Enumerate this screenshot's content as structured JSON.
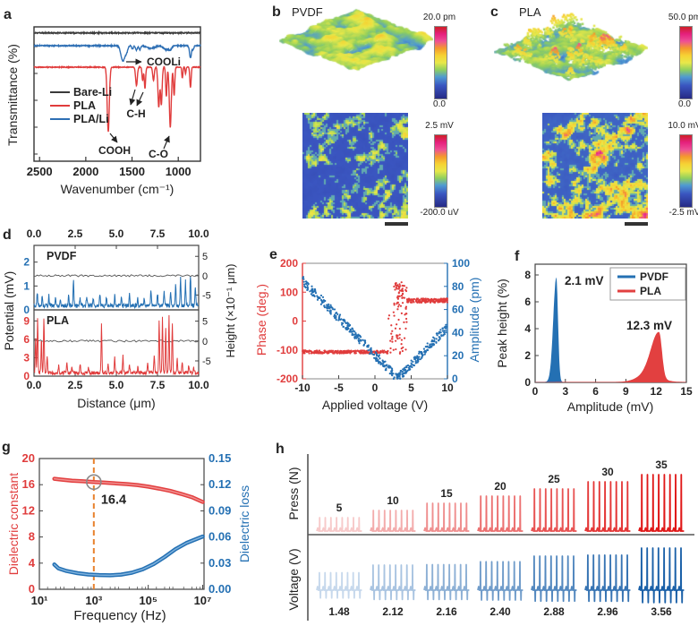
{
  "colors": {
    "red": "#e03c3c",
    "blue": "#2470b3",
    "black": "#3a3a3a",
    "orange_dash": "#e8822e",
    "circle_gray": "#8a8a8a",
    "red_light": "#f09090",
    "blue_light": "#7fb2dd"
  },
  "colormap_stops": [
    [
      0,
      "#262a85"
    ],
    [
      0.18,
      "#3a55c0"
    ],
    [
      0.3,
      "#4f9ad2"
    ],
    [
      0.4,
      "#8fcf5e"
    ],
    [
      0.5,
      "#e8e84a"
    ],
    [
      0.6,
      "#f6d234"
    ],
    [
      0.7,
      "#f49a2c"
    ],
    [
      0.8,
      "#ee4f96"
    ],
    [
      0.9,
      "#e5207e"
    ],
    [
      1,
      "#cf2027"
    ]
  ],
  "panels": {
    "a": {
      "letter": "a",
      "xlabel": "Wavenumber (cm⁻¹)",
      "ylabel": "Transmittance (%)",
      "legend": [
        {
          "label": "Bare-Li",
          "color": "#3a3a3a"
        },
        {
          "label": "PLA",
          "color": "#e03c3c"
        },
        {
          "label": "PLA/Li",
          "color": "#2e6fb4"
        }
      ],
      "annotations": {
        "cooli": "COOLi",
        "ch": "C-H",
        "cooh": "COOH",
        "co": "C-O"
      }
    },
    "b": {
      "letter": "b",
      "title": "PVDF",
      "cb_top_max": "20.0 pm",
      "cb_top_min": "0.0",
      "cb_bot_max": "2.5 mV",
      "cb_bot_min": "-200.0 uV"
    },
    "c": {
      "letter": "c",
      "title": "PLA",
      "cb_top_max": "50.0 pm",
      "cb_top_min": "0.0",
      "cb_bot_max": "10.0 mV",
      "cb_bot_min": "-2.5 mV"
    },
    "d": {
      "letter": "d",
      "ylabel": "Potential (mV)",
      "ylabel_right": "Height (×10⁻¹ μm)",
      "xlabel": "Distance (μm)"
    },
    "e": {
      "letter": "e",
      "xlabel": "Applied voltage (V)",
      "ylabel_left": "Phase (deg.)",
      "ylabel_right": "Amplitude (pm)"
    },
    "f": {
      "letter": "f",
      "xlabel": "Amplitude (mV)",
      "ylabel": "Peak height (%)"
    },
    "g": {
      "letter": "g",
      "xlabel": "Frequency (Hz)",
      "ylabel_left": "Dielectric constant",
      "ylabel_right": "Dielectric loss"
    },
    "h": {
      "letter": "h",
      "top_label": "Press (N)",
      "bottom_label": "Voltage (V)"
    }
  },
  "chart_data": [
    {
      "id": "a",
      "type": "line",
      "title": "FTIR spectra of Bare-Li, PLA and PLA/Li",
      "xlabel": "Wavenumber (cm⁻¹)",
      "ylabel": "Transmittance (%)",
      "x_ticks": [
        2500,
        2000,
        1500,
        1000
      ],
      "x_range": [
        2560,
        760
      ],
      "series": [
        {
          "name": "Bare-Li",
          "color": "#3a3a3a",
          "baseline": 0.045,
          "noise": 0.004,
          "peaks": []
        },
        {
          "name": "PLA/Li",
          "color": "#2e6fb4",
          "baseline": 0.14,
          "noise": 0.004,
          "peaks": [
            {
              "c": 1598,
              "w": 30,
              "d": 0.115
            },
            {
              "c": 1558,
              "w": 18,
              "d": 0.04
            },
            {
              "c": 1495,
              "w": 12,
              "d": 0.025
            },
            {
              "c": 1452,
              "w": 14,
              "d": 0.035
            },
            {
              "c": 1415,
              "w": 12,
              "d": 0.03
            },
            {
              "c": 1300,
              "w": 60,
              "d": 0.02
            },
            {
              "c": 1130,
              "w": 40,
              "d": 0.03
            },
            {
              "c": 1085,
              "w": 20,
              "d": 0.025
            },
            {
              "c": 868,
              "w": 14,
              "d": 0.09
            },
            {
              "c": 838,
              "w": 10,
              "d": 0.03
            }
          ]
        },
        {
          "name": "PLA",
          "color": "#e03c3c",
          "baseline": 0.3,
          "noise": 0.003,
          "peaks": [
            {
              "c": 1757,
              "w": 16,
              "d": 0.48
            },
            {
              "c": 1452,
              "w": 13,
              "d": 0.14
            },
            {
              "c": 1385,
              "w": 10,
              "d": 0.1
            },
            {
              "c": 1360,
              "w": 10,
              "d": 0.16
            },
            {
              "c": 1268,
              "w": 12,
              "d": 0.1
            },
            {
              "c": 1211,
              "w": 13,
              "d": 0.3
            },
            {
              "c": 1183,
              "w": 12,
              "d": 0.28
            },
            {
              "c": 1129,
              "w": 10,
              "d": 0.22
            },
            {
              "c": 1086,
              "w": 15,
              "d": 0.45
            },
            {
              "c": 1045,
              "w": 10,
              "d": 0.21
            },
            {
              "c": 956,
              "w": 8,
              "d": 0.08
            },
            {
              "c": 921,
              "w": 7,
              "d": 0.05
            },
            {
              "c": 868,
              "w": 10,
              "d": 0.15
            }
          ]
        }
      ],
      "peak_annotations": [
        "COOLi at ~1600 (PLA/Li)",
        "C-H at 1452/1360 (PLA)",
        "COOH at ~1757 (PLA)",
        "C-O at ~1086 (PLA)"
      ]
    },
    {
      "id": "d",
      "type": "line",
      "xlabel": "Distance (μm)",
      "ylabel": "Potential (mV)",
      "ylabel_right": "Height (×10⁻¹ μm)",
      "x_range": [
        0,
        10
      ],
      "x_tick_labels": [
        "0.0",
        "2.5",
        "5.0",
        "7.5",
        "10.0"
      ],
      "right_ticks": [
        5,
        0,
        -5
      ],
      "subplots": [
        {
          "label": "PVDF",
          "color": "#2470b3",
          "y_ticks": [
            0,
            1,
            2
          ],
          "y_max": 2.7,
          "base": 0.18,
          "noise": 0.09,
          "spikes": [
            [
              0.2,
              0.75
            ],
            [
              0.5,
              0.55
            ],
            [
              0.9,
              0.6
            ],
            [
              1.3,
              0.5
            ],
            [
              1.6,
              0.45
            ],
            [
              2.1,
              0.6
            ],
            [
              2.4,
              1.25
            ],
            [
              2.8,
              0.55
            ],
            [
              3.2,
              0.6
            ],
            [
              3.6,
              0.5
            ],
            [
              4.0,
              0.7
            ],
            [
              4.4,
              0.55
            ],
            [
              4.9,
              0.6
            ],
            [
              5.3,
              0.5
            ],
            [
              5.8,
              0.65
            ],
            [
              6.3,
              0.55
            ],
            [
              6.7,
              0.5
            ],
            [
              7.1,
              0.85
            ],
            [
              7.5,
              0.7
            ],
            [
              7.9,
              0.75
            ],
            [
              8.3,
              0.8
            ],
            [
              8.6,
              1.1
            ],
            [
              8.9,
              1.35
            ],
            [
              9.2,
              1.2
            ],
            [
              9.5,
              1.45
            ],
            [
              9.8,
              1.0
            ]
          ]
        },
        {
          "label": "PLA",
          "color": "#e03c3c",
          "y_ticks": [
            0,
            3,
            6,
            9
          ],
          "y_max": 10.8,
          "base": 0.55,
          "noise": 0.3,
          "spikes": [
            [
              0.1,
              6.2
            ],
            [
              0.22,
              9.3
            ],
            [
              0.45,
              5.8
            ],
            [
              0.6,
              9.6
            ],
            [
              0.8,
              3.2
            ],
            [
              1.5,
              1.8
            ],
            [
              2.0,
              2.2
            ],
            [
              2.3,
              1.6
            ],
            [
              2.8,
              2.0
            ],
            [
              3.3,
              1.5
            ],
            [
              4.1,
              8.3
            ],
            [
              4.5,
              2.2
            ],
            [
              4.9,
              3.1
            ],
            [
              5.4,
              3.3
            ],
            [
              5.8,
              1.8
            ],
            [
              6.3,
              1.5
            ],
            [
              6.9,
              2.3
            ],
            [
              7.3,
              3.4
            ],
            [
              7.6,
              8.8
            ],
            [
              7.8,
              9.4
            ],
            [
              8.0,
              7.6
            ],
            [
              8.2,
              9.7
            ],
            [
              8.4,
              8.5
            ],
            [
              8.7,
              3.0
            ],
            [
              9.0,
              2.2
            ],
            [
              9.4,
              1.8
            ],
            [
              9.7,
              1.4
            ]
          ]
        }
      ]
    },
    {
      "id": "e",
      "type": "scatter",
      "xlabel": "Applied voltage (V)",
      "x_ticks": [
        -10,
        -5,
        0,
        5,
        10
      ],
      "x_range": [
        -10,
        10
      ],
      "left_axis": {
        "label": "Phase (deg.)",
        "color": "#e03c3c",
        "ticks": [
          200,
          100,
          0,
          -100,
          -200
        ],
        "range": [
          -200,
          200
        ]
      },
      "right_axis": {
        "label": "Amplitude (pm)",
        "color": "#2470b3",
        "ticks": [
          100,
          80,
          60,
          40,
          20,
          0
        ],
        "range": [
          0,
          100
        ]
      },
      "phase_series": {
        "name": "Phase",
        "color": "#e03c3c",
        "low_level": -107,
        "high_level": 71,
        "transition_v": [
          1.8,
          4.6
        ],
        "jitter": 5
      },
      "amplitude_series": {
        "name": "Amplitude",
        "color": "#2470b3",
        "v_min_amplitude": 3.1,
        "value_at_minus10": 85,
        "value_at_min": 0.5,
        "value_at_plus10": 45,
        "jitter": 4
      }
    },
    {
      "id": "f",
      "type": "area",
      "xlabel": "Amplitude (mV)",
      "ylabel": "Peak height (%)",
      "x_ticks": [
        0,
        3,
        6,
        9,
        12,
        15
      ],
      "y_ticks": [
        0,
        2,
        4,
        6,
        8
      ],
      "x_range": [
        0,
        15
      ],
      "y_range": [
        0,
        8.8
      ],
      "series": [
        {
          "name": "PVDF",
          "color": "#2470b3",
          "peak_center": 2.1,
          "peak_height": 7.8,
          "sigma_left": 0.3,
          "sigma_right": 0.17,
          "annotation": "2.1 mV"
        },
        {
          "name": "PLA",
          "color": "#e24040",
          "peak_center": 12.3,
          "peak_height": 3.35,
          "sigma_left": 0.78,
          "sigma_right": 0.28,
          "annotation": "12.3 mV"
        }
      ]
    },
    {
      "id": "g",
      "type": "line",
      "xlabel": "Frequency (Hz)",
      "x_ticks": [
        {
          "v": 1,
          "label": "10¹"
        },
        {
          "v": 3,
          "label": "10³"
        },
        {
          "v": 5,
          "label": "10⁵"
        },
        {
          "v": 7,
          "label": "10⁷"
        }
      ],
      "x_range_log10": [
        1,
        7.05
      ],
      "left_axis": {
        "label": "Dielectric constant",
        "color": "#e03c3c",
        "ticks": [
          0,
          4,
          8,
          12,
          16,
          20
        ],
        "range": [
          0,
          20
        ]
      },
      "right_axis": {
        "label": "Dielectric loss",
        "color": "#2470b3",
        "ticks": [
          "0.00",
          "0.03",
          "0.06",
          "0.09",
          "0.12",
          "0.15"
        ],
        "range": [
          0,
          0.15
        ]
      },
      "marker": {
        "log_f": 3,
        "value": 16.4,
        "label": "16.4"
      },
      "series": [
        {
          "name": "dielectric_constant",
          "axis": "left",
          "color": "#e34040",
          "points": [
            [
              1.55,
              16.9
            ],
            [
              1.8,
              16.78
            ],
            [
              2.2,
              16.62
            ],
            [
              2.6,
              16.52
            ],
            [
              3.0,
              16.4
            ],
            [
              3.4,
              16.32
            ],
            [
              3.8,
              16.2
            ],
            [
              4.2,
              16.1
            ],
            [
              4.6,
              15.95
            ],
            [
              5.0,
              15.7
            ],
            [
              5.4,
              15.4
            ],
            [
              5.8,
              15.05
            ],
            [
              6.2,
              14.6
            ],
            [
              6.6,
              14.1
            ],
            [
              7.0,
              13.35
            ]
          ]
        },
        {
          "name": "dielectric_loss",
          "axis": "right",
          "color": "#2470b3",
          "points": [
            [
              1.55,
              0.0285
            ],
            [
              1.7,
              0.024
            ],
            [
              2.0,
              0.021
            ],
            [
              2.4,
              0.0185
            ],
            [
              2.8,
              0.017
            ],
            [
              3.2,
              0.0163
            ],
            [
              3.6,
              0.016
            ],
            [
              4.0,
              0.0168
            ],
            [
              4.4,
              0.019
            ],
            [
              4.8,
              0.023
            ],
            [
              5.2,
              0.029
            ],
            [
              5.6,
              0.037
            ],
            [
              6.0,
              0.046
            ],
            [
              6.4,
              0.053
            ],
            [
              6.8,
              0.058
            ],
            [
              7.0,
              0.0605
            ]
          ]
        }
      ]
    },
    {
      "id": "h",
      "type": "spike-trains",
      "top": {
        "label": "Press (N)",
        "values": [
          5,
          10,
          15,
          20,
          25,
          30,
          35
        ],
        "value_labels": [
          "5",
          "10",
          "15",
          "20",
          "25",
          "30",
          "35"
        ],
        "color_range": [
          "#f7caca",
          "#e01818"
        ]
      },
      "bottom": {
        "label": "Voltage (V)",
        "values": [
          1.48,
          2.12,
          2.16,
          2.4,
          2.88,
          2.96,
          3.56
        ],
        "value_labels": [
          "1.48",
          "2.12",
          "2.16",
          "2.40",
          "2.88",
          "2.96",
          "3.56"
        ],
        "color_range": [
          "#c6d8ec",
          "#1a60a8"
        ]
      },
      "spikes_per_train": 8
    }
  ]
}
